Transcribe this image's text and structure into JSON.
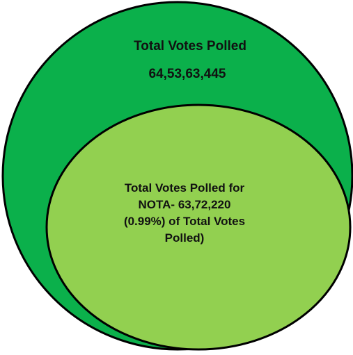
{
  "outer": {
    "title": "Total Votes Polled",
    "value": "64,53,63,445",
    "fill_color": "#0bb04b",
    "stroke_color": "#000000"
  },
  "inner": {
    "lines": [
      "Total Votes Polled for",
      "NOTA- 63,72,220",
      "(0.99%) of Total Votes",
      "Polled)"
    ],
    "fill_color": "#92d050",
    "stroke_color": "#000000"
  }
}
